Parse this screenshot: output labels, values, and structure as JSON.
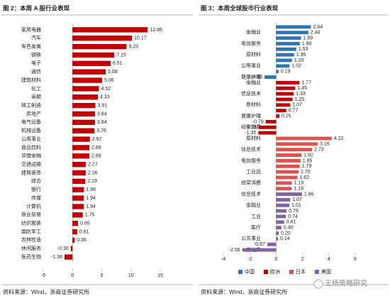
{
  "chart_data": [
    {
      "type": "bar",
      "orientation": "horizontal",
      "title": "图 2：本周 A 股行业表现",
      "categories": [
        "家用电器",
        "汽车",
        "有色金属",
        "钢铁",
        "电子",
        "通信",
        "建筑材料",
        "化工",
        "采掘",
        "轻工制造",
        "房地产",
        "电气设备",
        "机械设备",
        "公用事业",
        "食品饮料",
        "非银金融",
        "交通运输",
        "建筑装饰",
        "综合",
        "银行",
        "传媒",
        "计算机",
        "商业贸易",
        "纺织服装",
        "国防军工",
        "农林牧渔",
        "休闲服务",
        "医药生物"
      ],
      "values": [
        12.86,
        10.17,
        9.23,
        7.15,
        6.51,
        5.68,
        5.06,
        4.52,
        4.33,
        3.91,
        3.84,
        3.84,
        3.76,
        2.97,
        2.89,
        2.89,
        2.27,
        2.26,
        2.19,
        1.96,
        1.94,
        1.94,
        1.75,
        0.95,
        0.81,
        0.36,
        -0.3,
        -1.36
      ],
      "value_labels": [
        "12.86",
        "10.17",
        "9.23",
        "7.15",
        "6.51",
        "5.68",
        "5.06",
        "4.52",
        "4.33",
        "3.91",
        "3.84",
        "3.84",
        "3.76",
        "2.97",
        "2.89",
        "2.89",
        "2.27",
        "2.26",
        "2.19",
        "1.96",
        "1.94",
        "1.94",
        "1.75",
        "0.95",
        "0.81",
        "0.36",
        "-0.30",
        "-1.36"
      ],
      "color": "#c00000",
      "xlim": [
        -5,
        15
      ],
      "xticks": [
        -5,
        0,
        5,
        10,
        15
      ],
      "source": "资料来源：Wind，浙商证券研究所"
    },
    {
      "type": "bar",
      "orientation": "horizontal",
      "title": "图 3：本周全球股市行业表现",
      "categories": [
        null,
        "金融业",
        null,
        "电信服务",
        null,
        "原材料",
        null,
        "公用事业",
        null,
        "健康护理",
        "金融业",
        null,
        "信息技术",
        null,
        "原材料",
        null,
        "健康护理",
        null,
        "经常消费",
        null,
        "原材料",
        null,
        "信息技术",
        null,
        "电信服务",
        null,
        "工业品",
        null,
        "经常消费",
        null,
        "信息技术",
        null,
        "金融业",
        null,
        "工业",
        null,
        "医疗",
        null,
        "公共事业",
        null,
        "房地产"
      ],
      "series": [
        {
          "name": "中国",
          "color": "#2e75b6",
          "values": [
            2.64,
            2.44,
            1.89,
            1.8,
            1.53,
            1.36,
            1.2,
            1.02,
            0.19,
            -0.88,
            null,
            null,
            null,
            null,
            null,
            null,
            null,
            null,
            null,
            null,
            null,
            null,
            null,
            null,
            null,
            null,
            null,
            null,
            null,
            null,
            null,
            null,
            null,
            null,
            null,
            null,
            null,
            null,
            null,
            null,
            null
          ],
          "value_labels": [
            "2.64",
            "2.44",
            "1.89",
            "1.80",
            "1.53",
            "1.36",
            "1.20",
            "1.02",
            "0.19",
            "-0.88",
            null,
            null,
            null,
            null,
            null,
            null,
            null,
            null,
            null,
            null,
            null,
            null,
            null,
            null,
            null,
            null,
            null,
            null,
            null,
            null,
            null,
            null,
            null,
            null,
            null,
            null,
            null,
            null,
            null,
            null,
            null
          ]
        },
        {
          "name": "欧洲",
          "color": "#c00000",
          "values": [
            null,
            null,
            null,
            null,
            null,
            null,
            null,
            null,
            null,
            null,
            1.77,
            1.45,
            1.33,
            1.25,
            1.07,
            0.77,
            0.25,
            -0.79,
            -1.33,
            -1.35,
            null,
            null,
            null,
            null,
            null,
            null,
            null,
            null,
            null,
            null,
            null,
            null,
            null,
            null,
            null,
            null,
            null,
            null,
            null,
            null,
            null
          ],
          "value_labels": [
            null,
            null,
            null,
            null,
            null,
            null,
            null,
            null,
            null,
            null,
            "1.77",
            "1.45",
            "1.33",
            "1.25",
            "1.07",
            "0.77",
            "0.25",
            "-0.79",
            "-1.33",
            "-1.35",
            null,
            null,
            null,
            null,
            null,
            null,
            null,
            null,
            null,
            null,
            null,
            null,
            null,
            null,
            null,
            null,
            null,
            null,
            null,
            null,
            null
          ]
        },
        {
          "name": "日本",
          "color": "#d9534f",
          "values": [
            null,
            null,
            null,
            null,
            null,
            null,
            null,
            null,
            null,
            null,
            null,
            null,
            null,
            null,
            null,
            null,
            null,
            null,
            null,
            null,
            4.22,
            3.16,
            2.73,
            1.92,
            1.85,
            1.79,
            1.7,
            1.62,
            1.19,
            1.18,
            null,
            null,
            null,
            null,
            null,
            null,
            null,
            null,
            null,
            null,
            null
          ],
          "value_labels": [
            null,
            null,
            null,
            null,
            null,
            null,
            null,
            null,
            null,
            null,
            null,
            null,
            null,
            null,
            null,
            null,
            null,
            null,
            null,
            null,
            "4.22",
            "3.16",
            "2.73",
            "1.92",
            "1.85",
            "1.79",
            "1.70",
            "1.62",
            "1.19",
            "1.18",
            null,
            null,
            null,
            null,
            null,
            null,
            null,
            null,
            null,
            null,
            null
          ]
        },
        {
          "name": "美国",
          "color": "#8064a2",
          "values": [
            null,
            null,
            null,
            null,
            null,
            null,
            null,
            null,
            null,
            null,
            null,
            null,
            null,
            null,
            null,
            null,
            null,
            null,
            null,
            null,
            null,
            null,
            null,
            null,
            null,
            null,
            null,
            null,
            null,
            null,
            1.96,
            1.07,
            1.01,
            0.79,
            0.74,
            0.61,
            0.4,
            0.2,
            0.14,
            -0.67,
            -2.56
          ],
          "value_labels": [
            null,
            null,
            null,
            null,
            null,
            null,
            null,
            null,
            null,
            null,
            null,
            null,
            null,
            null,
            null,
            null,
            null,
            null,
            null,
            null,
            null,
            null,
            null,
            null,
            null,
            null,
            null,
            null,
            null,
            null,
            "1.96",
            "1.07",
            "1.01",
            "0.79",
            "0.74",
            "0.61",
            "0.40",
            "0.20",
            "0.14",
            "-0.67",
            "-2.56"
          ]
        }
      ],
      "xlim": [
        -4,
        6
      ],
      "xticks": [
        -4,
        -2,
        0,
        2,
        4,
        6
      ],
      "legend": "bottom",
      "source": "资料来源：Wind，浙商证券研究所"
    }
  ],
  "watermark": "王杨策略研究"
}
